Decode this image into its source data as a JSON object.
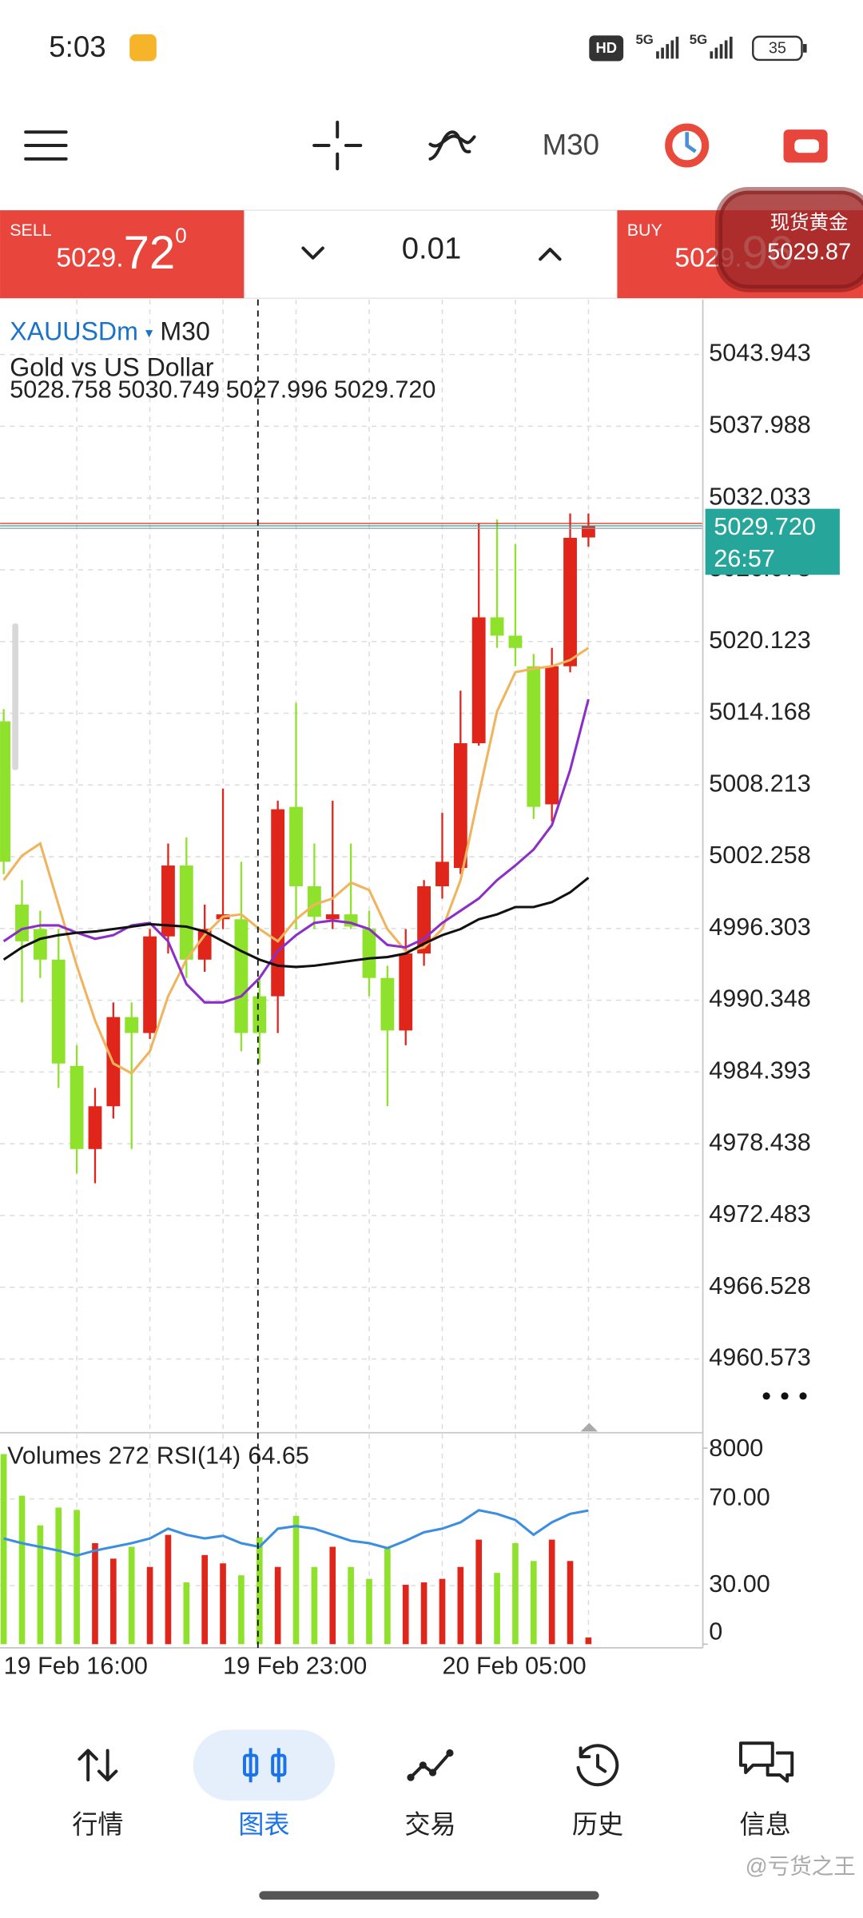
{
  "status_bar": {
    "time": "5:03",
    "hd": "HD",
    "network": [
      "5G",
      "5G"
    ],
    "battery": "35"
  },
  "toolbar": {
    "timeframe": "M30"
  },
  "trade_panel": {
    "sell_label": "SELL",
    "sell_price_prefix": "5029.",
    "sell_price_big": "72",
    "sell_price_sup": "0",
    "volume": "0.01",
    "buy_label": "BUY",
    "buy_price_prefix": "5029.",
    "buy_price_big": "96"
  },
  "price_widget": {
    "title": "现货黄金",
    "price": "5029.87"
  },
  "chart_data": [
    {
      "type": "candlestick",
      "symbol": "XAUUSDm",
      "timeframe": "M30",
      "description": "Gold vs US Dollar",
      "ohlc_line": [
        "5028.758",
        "5030.749",
        "5027.996",
        "5029.720"
      ],
      "categories": [
        "19 Feb 16:00",
        null,
        null,
        null,
        null,
        null,
        null,
        null,
        null,
        null,
        null,
        null,
        "19 Feb 23:00",
        null,
        null,
        null,
        null,
        null,
        null,
        null,
        null,
        null,
        null,
        null,
        "20 Feb 05:00",
        null,
        null,
        null,
        null,
        null,
        null,
        null,
        null
      ],
      "open": [
        5013.5,
        4998.29,
        4996.26,
        4993.72,
        4984.9,
        4978.0,
        4981.55,
        4988.95,
        4987.63,
        4995.65,
        5001.53,
        4993.72,
        4997.07,
        4997.07,
        4990.68,
        4990.68,
        5006.4,
        4999.81,
        4997.07,
        4997.48,
        4996.26,
        4992.2,
        4987.84,
        4994.23,
        4999.81,
        5001.33,
        5011.68,
        5022.13,
        5020.61,
        5018.07,
        5006.61,
        5018.07,
        5028.758
      ],
      "high": [
        5014.52,
        5000.32,
        4997.78,
        4996.26,
        4986.62,
        4983.07,
        4990.17,
        4990.17,
        4996.26,
        5003.36,
        5003.87,
        4998.29,
        5007.92,
        5001.84,
        4992.2,
        5006.91,
        5015.03,
        5003.36,
        5006.91,
        5003.36,
        4997.78,
        4993.21,
        4996.26,
        5000.32,
        5005.9,
        5016.04,
        5029.94,
        5030.25,
        5028.22,
        5019.09,
        5019.59,
        5030.75,
        5030.749
      ],
      "low": [
        5000.82,
        4990.17,
        4992.2,
        4983.07,
        4975.97,
        4975.16,
        4980.53,
        4978.0,
        4987.13,
        4994.23,
        4992.2,
        4992.71,
        4996.26,
        4986.11,
        4985.1,
        4987.63,
        4996.26,
        4996.26,
        4996.26,
        4996.26,
        4990.68,
        4981.55,
        4986.62,
        4993.21,
        4998.79,
        5000.82,
        5011.48,
        5019.59,
        5018.07,
        5005.39,
        5005.19,
        5017.57,
        5027.996
      ],
      "close": [
        5001.84,
        4995.24,
        4993.72,
        4985.1,
        4978.0,
        4981.55,
        4988.95,
        4987.63,
        4995.65,
        5001.53,
        4993.72,
        4996.26,
        4997.48,
        4987.63,
        4987.63,
        5006.2,
        4999.81,
        4997.28,
        4997.48,
        4996.46,
        4992.2,
        4987.84,
        4994.23,
        4999.81,
        5001.84,
        5011.68,
        5022.13,
        5020.61,
        5019.59,
        5006.4,
        5018.07,
        5028.73,
        5029.72
      ],
      "up_color": "#e0251b",
      "down_color": "#8ee22c",
      "moving_averages": [
        {
          "color": "#f0b35e",
          "values": [
            5000.32,
            5002.35,
            5003.36,
            4998.29,
            4993.21,
            4988.65,
            4985.1,
            4984.29,
            4986.11,
            4990.68,
            4993.72,
            4995.75,
            4997.28,
            4997.48,
            4996.26,
            4995.24,
            4997.07,
            4998.29,
            4998.79,
            5000.11,
            4999.5,
            4996.26,
            4994.43,
            4994.74,
            4996.26,
            5000.32,
            5007.42,
            5014.32,
            5017.57,
            5017.87,
            5018.07,
            5018.58,
            5019.59
          ]
        },
        {
          "color": "#8a2fc8",
          "values": [
            4995.24,
            4996.26,
            4996.56,
            4996.56,
            4995.95,
            4995.45,
            4995.75,
            4996.56,
            4996.77,
            4995.24,
            4991.69,
            4990.17,
            4990.17,
            4990.68,
            4992.2,
            4994.43,
            4995.75,
            4996.77,
            4996.97,
            4996.77,
            4996.26,
            4994.94,
            4994.74,
            4995.45,
            4996.77,
            4997.78,
            4998.79,
            5000.32,
            5001.53,
            5002.85,
            5004.88,
            5009.45,
            5015.33
          ]
        },
        {
          "color": "#111111",
          "values": [
            4993.72,
            4994.74,
            4995.45,
            4995.75,
            4995.95,
            4996.06,
            4996.26,
            4996.46,
            4996.66,
            4996.56,
            4996.46,
            4996.06,
            4995.24,
            4994.43,
            4993.72,
            4993.21,
            4993.11,
            4993.21,
            4993.42,
            4993.62,
            4993.82,
            4993.93,
            4994.23,
            4995.04,
            4995.75,
            4996.26,
            4997.07,
            4997.48,
            4998.08,
            4998.08,
            4998.49,
            4999.3,
            5000.52
          ]
        }
      ],
      "ylim": [
        4954.66,
        5048.51
      ],
      "yticks": [
        5043.943,
        5037.988,
        5032.033,
        5026.078,
        5020.123,
        5014.168,
        5008.213,
        5002.258,
        4996.303,
        4990.348,
        4984.393,
        4978.438,
        4972.483,
        4966.528,
        4960.573
      ],
      "grid": true,
      "current_price": {
        "value": 5029.72,
        "label": "5029.720"
      },
      "price_color": "#26a69a",
      "countdown": "26:57"
    },
    {
      "type": "volume_rsi",
      "volume_label": "Volumes",
      "rsi_label": "RSI(14)",
      "volumes": [
        7757,
        6060,
        4848,
        5575,
        5478,
        4121,
        3491,
        3975,
        3151,
        4460,
        2521,
        3636,
        3297,
        2812,
        4363,
        3151,
        5236,
        3151,
        3975,
        3151,
        2666,
        3975,
        2424,
        2521,
        2666,
        3151,
        4266,
        2909,
        4121,
        3394,
        4266,
        3394,
        272
      ],
      "rsi": [
        51.8,
        49.6,
        47.9,
        46.2,
        43.9,
        46.2,
        47.9,
        49.6,
        51.8,
        56.3,
        53.5,
        51.8,
        53.0,
        49.6,
        47.9,
        56.3,
        57.5,
        56.3,
        53.5,
        50.7,
        49.6,
        47.3,
        50.7,
        54.6,
        56.3,
        59.2,
        64.8,
        63.1,
        60.3,
        53.5,
        59.2,
        63.1,
        64.65
      ],
      "rsi_color": "#3b8ee0",
      "ylim": [
        0,
        8580
      ],
      "yticks": [
        0,
        8000
      ],
      "y2lim": [
        3,
        100
      ],
      "y2ticks": [
        {
          "value": 70,
          "label": "70.00"
        },
        {
          "value": 30,
          "label": "30.00"
        }
      ]
    }
  ],
  "nav": [
    {
      "label": "行情"
    },
    {
      "label": "图表",
      "active": true
    },
    {
      "label": "交易"
    },
    {
      "label": "历史"
    },
    {
      "label": "信息"
    }
  ],
  "watermark": "@亏货之王"
}
